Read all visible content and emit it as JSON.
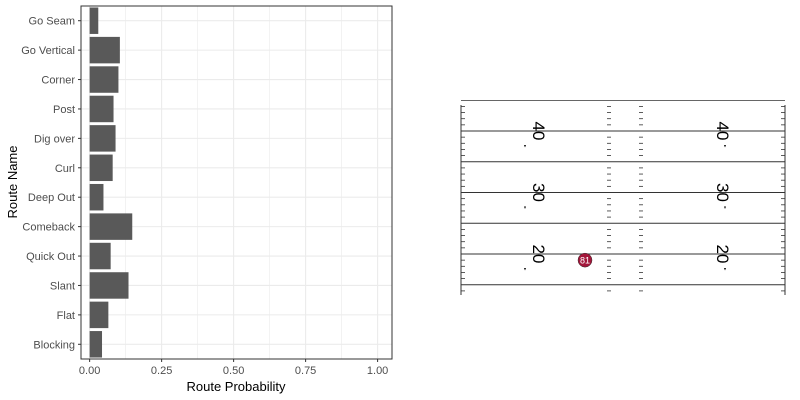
{
  "chart_data": [
    {
      "type": "bar",
      "orientation": "horizontal",
      "categories": [
        "Go Seam",
        "Go Vertical",
        "Corner",
        "Post",
        "Dig over",
        "Curl",
        "Deep Out",
        "Comeback",
        "Quick Out",
        "Slant",
        "Flat",
        "Blocking"
      ],
      "values": [
        0.03,
        0.105,
        0.1,
        0.083,
        0.09,
        0.08,
        0.048,
        0.148,
        0.073,
        0.135,
        0.065,
        0.043
      ],
      "xlabel": "Route Probability",
      "ylabel": "Route Name",
      "xlim": [
        -0.03,
        1.05
      ],
      "xticks": [
        "0.00",
        "0.25",
        "0.50",
        "0.75",
        "1.00"
      ],
      "grid": true,
      "colors": {
        "bar": "#595959",
        "panel_border": "#333333",
        "grid": "#ebebeb"
      }
    },
    {
      "type": "field-diagram",
      "yard_labels": [
        "40",
        "30",
        "20"
      ],
      "player": {
        "number": "81",
        "color": "#a3163a",
        "yard": 19
      }
    }
  ]
}
